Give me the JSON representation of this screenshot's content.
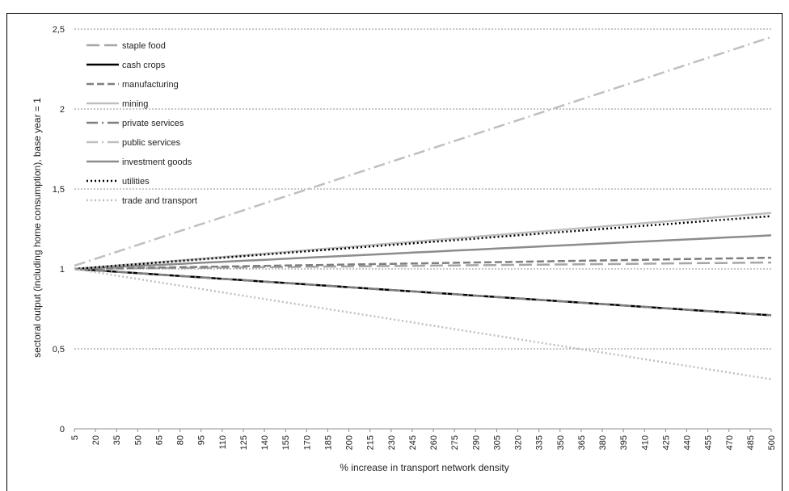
{
  "chart_data": {
    "type": "line",
    "title": "",
    "xlabel": "% increase in transport network density",
    "ylabel": "sectoral output (including home consumption), base year = 1",
    "x": [
      "5",
      "20",
      "35",
      "50",
      "65",
      "80",
      "95",
      "110",
      "125",
      "140",
      "155",
      "170",
      "185",
      "200",
      "215",
      "230",
      "245",
      "260",
      "275",
      "290",
      "305",
      "320",
      "335",
      "350",
      "365",
      "380",
      "395",
      "410",
      "425",
      "440",
      "455",
      "470",
      "485",
      "500"
    ],
    "ylim": [
      0,
      2.5
    ],
    "yticks": [
      "0",
      "0,5",
      "1",
      "1,5",
      "2",
      "2,5"
    ],
    "grid": true,
    "legend_position": "top-left",
    "series": [
      {
        "name": "staple food",
        "color": "#a6a6a6",
        "dash": "long-dash",
        "start": 1.0,
        "end": 1.04
      },
      {
        "name": "cash crops",
        "color": "#000000",
        "dash": "solid",
        "start": 1.0,
        "end": 0.71
      },
      {
        "name": "manufacturing",
        "color": "#7f7f7f",
        "dash": "dash",
        "start": 1.0,
        "end": 1.07
      },
      {
        "name": "mining",
        "color": "#bfbfbf",
        "dash": "solid",
        "start": 1.0,
        "end": 1.35
      },
      {
        "name": "private services",
        "color": "#7f7f7f",
        "dash": "dash-dot",
        "start": 1.0,
        "end": 0.71
      },
      {
        "name": "public services",
        "color": "#bfbfbf",
        "dash": "dash-dot",
        "start": 1.02,
        "end": 2.45
      },
      {
        "name": "investment goods",
        "color": "#8c8c8c",
        "dash": "solid",
        "start": 1.0,
        "end": 1.21
      },
      {
        "name": "utilities",
        "color": "#000000",
        "dash": "dot",
        "start": 1.0,
        "end": 1.33
      },
      {
        "name": "trade and transport",
        "color": "#bfbfbf",
        "dash": "dot",
        "start": 1.0,
        "end": 0.31
      }
    ]
  }
}
